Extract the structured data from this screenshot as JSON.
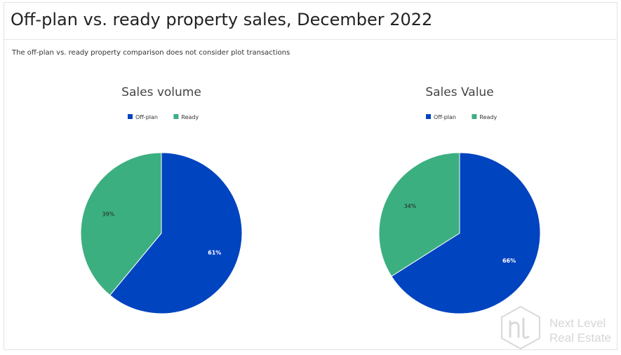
{
  "title": "Off-plan vs. ready property sales, December 2022",
  "note": "The off-plan vs. ready property comparison does not consider plot transactions",
  "colors": {
    "off_plan": "#0044c0",
    "ready": "#3caf81"
  },
  "watermark": {
    "line1": "Next Level",
    "line2": "Real Estate"
  },
  "chart_data": [
    {
      "type": "pie",
      "title": "Sales volume",
      "labels": [
        "Off-plan",
        "Ready"
      ],
      "values": [
        61,
        39
      ],
      "value_labels": [
        "61%",
        "39%"
      ],
      "legend": "top",
      "colors": [
        "#0044c0",
        "#3caf81"
      ]
    },
    {
      "type": "pie",
      "title": "Sales Value",
      "labels": [
        "Off-plan",
        "Ready"
      ],
      "values": [
        66,
        34
      ],
      "value_labels": [
        "66%",
        "34%"
      ],
      "legend": "top",
      "colors": [
        "#0044c0",
        "#3caf81"
      ]
    }
  ]
}
